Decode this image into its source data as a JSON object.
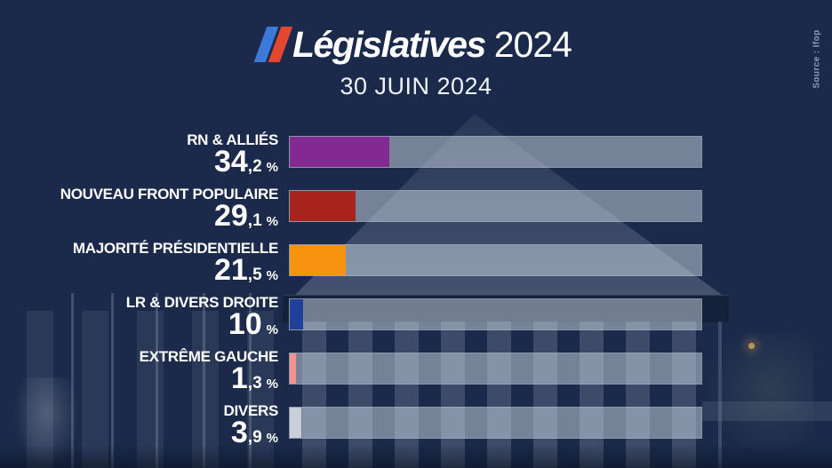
{
  "header": {
    "title_main": "Législatives",
    "title_year": "2024",
    "date": "30 JUIN 2024"
  },
  "source": {
    "label": "Source : Ifop"
  },
  "colors": {
    "background": "#1b2a4a",
    "track": "rgba(208,217,230,0.50)",
    "title_text": "#ffffff",
    "subtitle_text": "#eef2f6",
    "label_text": "#ffffff",
    "source_text": "#8e9ab2",
    "logo_blue": "#3d79d9",
    "logo_red": "#e2472f"
  },
  "chart_data": {
    "type": "bar",
    "orientation": "horizontal",
    "title": "Législatives 2024",
    "subtitle": "30 JUIN 2024",
    "source": "Source : Ifop",
    "unit": "%",
    "xlim": [
      0,
      100
    ],
    "grid": false,
    "legend": "none",
    "categories": [
      "RN & ALLIÉS",
      "NOUVEAU FRONT POPULAIRE",
      "MAJORITÉ PRÉSIDENTIELLE",
      "LR & DIVERS DROITE",
      "EXTRÊME GAUCHE",
      "DIVERS"
    ],
    "values": [
      34.2,
      29.1,
      21.5,
      10,
      1.3,
      3.9
    ],
    "value_labels": [
      "34,2 %",
      "29,1 %",
      "21,5 %",
      "10 %",
      "1,3 %",
      "3,9 %"
    ],
    "colors": [
      "#822a92",
      "#a6241c",
      "#f7930f",
      "#21409a",
      "#f2938f",
      "#c9cfd8"
    ],
    "rows": [
      {
        "label": "RN & ALLIÉS",
        "value": 34.2,
        "value_int": "34",
        "value_dec": ",2",
        "unit": "%",
        "color": "#822a92",
        "bar_width": "24.1%"
      },
      {
        "label": "NOUVEAU FRONT POPULAIRE",
        "value": 29.1,
        "value_int": "29",
        "value_dec": ",1",
        "unit": "%",
        "color": "#a6241c",
        "bar_width": "15.9%"
      },
      {
        "label": "MAJORITÉ PRÉSIDENTIELLE",
        "value": 21.5,
        "value_int": "21",
        "value_dec": ",5",
        "unit": "%",
        "color": "#f7930f",
        "bar_width": "13.5%"
      },
      {
        "label": "LR & DIVERS DROITE",
        "value": 10,
        "value_int": "10",
        "value_dec": "",
        "unit": "%",
        "color": "#21409a",
        "bar_width": "3.2%"
      },
      {
        "label": "EXTRÊME GAUCHE",
        "value": 1.3,
        "value_int": "1",
        "value_dec": ",3",
        "unit": "%",
        "color": "#f2938f",
        "bar_width": "1.5%"
      },
      {
        "label": "DIVERS",
        "value": 3.9,
        "value_int": "3",
        "value_dec": ",9",
        "unit": "%",
        "color": "#c9cfd8",
        "bar_width": "2.8%"
      }
    ]
  }
}
